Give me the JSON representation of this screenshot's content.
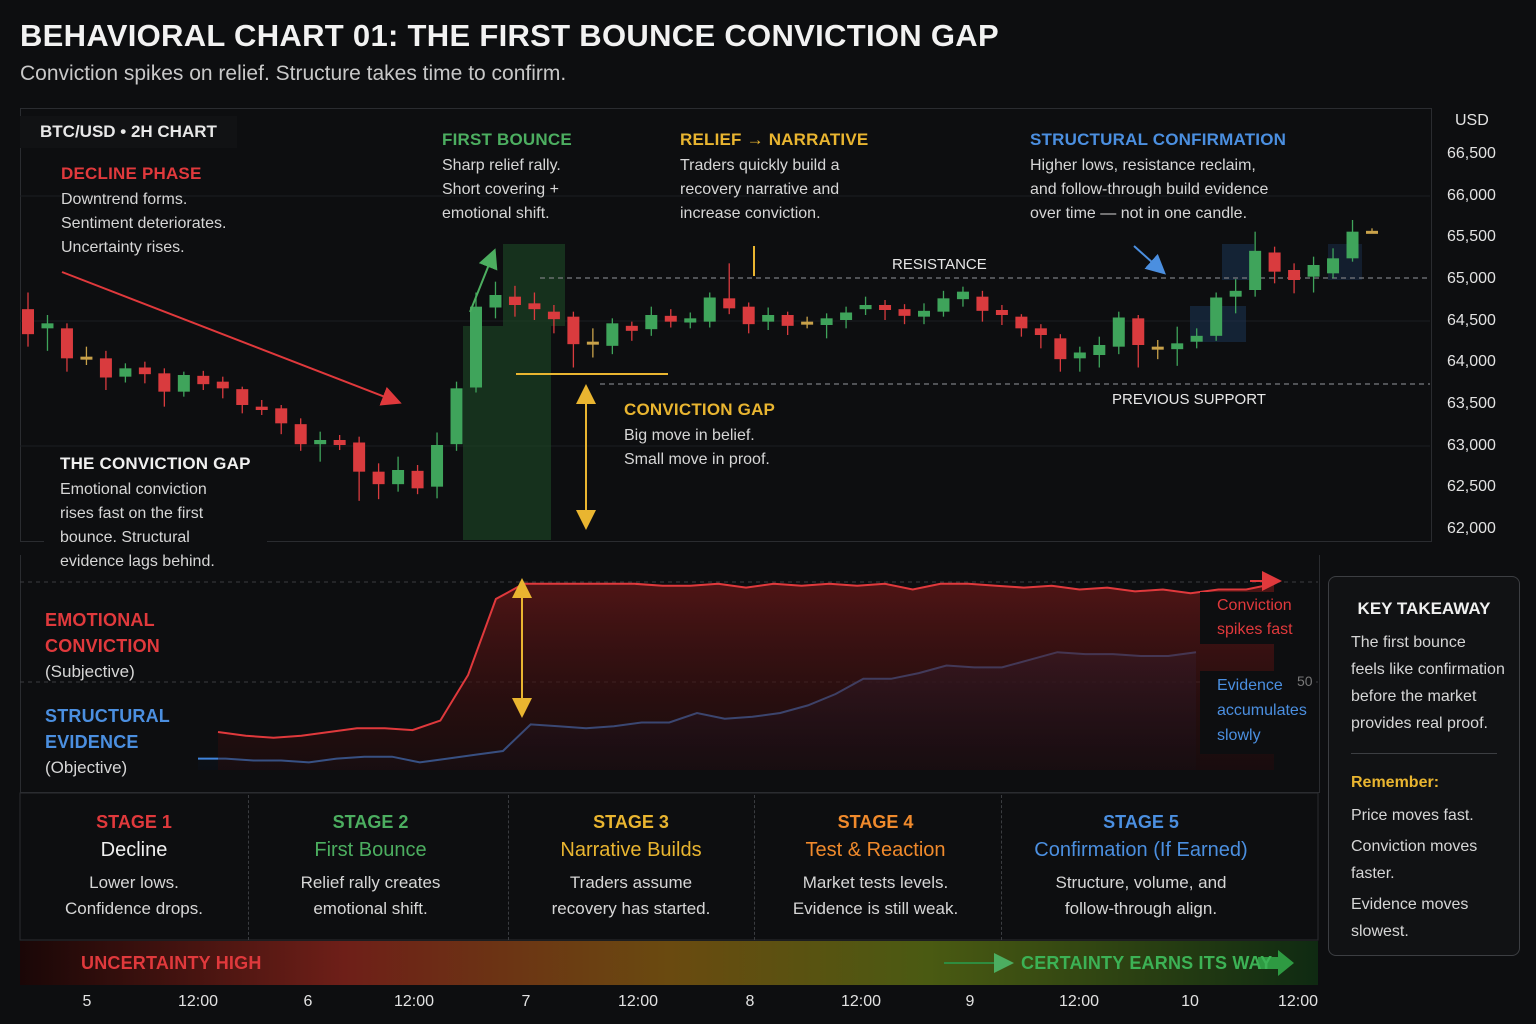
{
  "title": "BEHAVIORAL CHART 01: THE FIRST BOUNCE CONVICTION GAP",
  "subtitle": "Conviction spikes on relief. Structure takes time to confirm.",
  "pair_label": "BTC/USD • 2H CHART",
  "axis": {
    "unit": "USD",
    "y_ticks": [
      "66,500",
      "66,000",
      "65,500",
      "65,000",
      "64,500",
      "64,000",
      "63,500",
      "63,000",
      "62,500",
      "62,000"
    ],
    "x_ticks": [
      "5",
      "12:00",
      "6",
      "12:00",
      "7",
      "12:00",
      "8",
      "12:00",
      "9",
      "12:00",
      "10",
      "12:00"
    ]
  },
  "annotations": {
    "decline": {
      "heading": "DECLINE PHASE",
      "text": "Downtrend forms.\nSentiment deteriorates.\nUncertainty rises."
    },
    "first_bounce": {
      "heading": "FIRST BOUNCE",
      "text": "Sharp relief rally.\nShort covering +\nemotional shift."
    },
    "relief": {
      "heading": "RELIEF → NARRATIVE",
      "text": "Traders quickly build a\nrecovery narrative and\nincrease conviction."
    },
    "structural": {
      "heading": "STRUCTURAL CONFIRMATION",
      "text": "Higher lows, resistance reclaim,\nand follow-through build evidence\nover time — not in one candle."
    },
    "gap": {
      "heading": "CONVICTION GAP",
      "text": "Big move in belief.\nSmall move in proof."
    },
    "conviction_gap": {
      "heading": "THE CONVICTION GAP",
      "text": "Emotional conviction\nrises fast on the first\nbounce. Structural\nevidence lags behind."
    },
    "resistance": "RESISTANCE",
    "previous_support": "PREVIOUS SUPPORT"
  },
  "lower_panel": {
    "emotional_label_1": "EMOTIONAL",
    "emotional_label_2": "CONVICTION",
    "emotional_sub": "(Subjective)",
    "structural_label_1": "STRUCTURAL",
    "structural_label_2": "EVIDENCE",
    "structural_sub": "(Objective)",
    "conviction_note_1": "Conviction",
    "conviction_note_2": "spikes fast",
    "evidence_note_1": "Evidence",
    "evidence_note_2": "accumulates",
    "evidence_note_3": "slowly",
    "mid_tick": "50"
  },
  "stages": [
    {
      "num": "STAGE 1",
      "name": "Decline",
      "desc": "Lower lows.\nConfidence drops."
    },
    {
      "num": "STAGE 2",
      "name": "First Bounce",
      "desc": "Relief rally creates\nemotional shift."
    },
    {
      "num": "STAGE 3",
      "name": "Narrative Builds",
      "desc": "Traders assume\nrecovery has started."
    },
    {
      "num": "STAGE 4",
      "name": "Test & Reaction",
      "desc": "Market tests levels.\nEvidence is still weak."
    },
    {
      "num": "STAGE 5",
      "name": "Confirmation (If Earned)",
      "desc": "Structure, volume, and\nfollow-through align."
    }
  ],
  "gradient_bar": {
    "left": "UNCERTAINTY HIGH",
    "right": "CERTAINTY EARNS ITS WAY"
  },
  "takeaway": {
    "heading": "KEY TAKEAWAY",
    "text": "The first bounce\nfeels like confirmation\nbefore the market\nprovides real proof.",
    "remember_heading": "Remember:",
    "remember_1": "Price moves fast.",
    "remember_2": "Conviction moves\nfaster.",
    "remember_3": "Evidence moves\nslowest."
  },
  "colors": {
    "up": "#3fa45b",
    "down": "#d93b3e",
    "neutral": "#c9a24a",
    "conviction": "#e0393c",
    "evidence": "#3f84dc",
    "accent": "#e9b530"
  },
  "chart_data": [
    {
      "type": "candlestick",
      "title": "BTC/USD • 2H CHART",
      "ylabel": "USD",
      "ylim": [
        61900,
        66800
      ],
      "reference_lines": [
        {
          "name": "RESISTANCE",
          "value": 65000
        },
        {
          "name": "PREVIOUS SUPPORT",
          "value": 63730
        }
      ],
      "candles": [
        {
          "o": 64650,
          "c": 64350,
          "h": 64850,
          "l": 64200
        },
        {
          "o": 64420,
          "c": 64480,
          "h": 64580,
          "l": 64150
        },
        {
          "o": 64420,
          "c": 64060,
          "h": 64480,
          "l": 63900
        },
        {
          "o": 64080,
          "c": 64050,
          "h": 64200,
          "l": 63980
        },
        {
          "o": 64060,
          "c": 63830,
          "h": 64150,
          "l": 63680
        },
        {
          "o": 63840,
          "c": 63940,
          "h": 64000,
          "l": 63770
        },
        {
          "o": 63950,
          "c": 63870,
          "h": 64020,
          "l": 63760
        },
        {
          "o": 63880,
          "c": 63660,
          "h": 63940,
          "l": 63480
        },
        {
          "o": 63660,
          "c": 63860,
          "h": 63900,
          "l": 63600
        },
        {
          "o": 63850,
          "c": 63750,
          "h": 63910,
          "l": 63680
        },
        {
          "o": 63780,
          "c": 63700,
          "h": 63840,
          "l": 63580
        },
        {
          "o": 63690,
          "c": 63500,
          "h": 63720,
          "l": 63400
        },
        {
          "o": 63480,
          "c": 63440,
          "h": 63560,
          "l": 63380
        },
        {
          "o": 63460,
          "c": 63280,
          "h": 63500,
          "l": 63150
        },
        {
          "o": 63270,
          "c": 63030,
          "h": 63340,
          "l": 62950
        },
        {
          "o": 63030,
          "c": 63080,
          "h": 63180,
          "l": 62820
        },
        {
          "o": 63080,
          "c": 63020,
          "h": 63140,
          "l": 62960
        },
        {
          "o": 63050,
          "c": 62700,
          "h": 63120,
          "l": 62350
        },
        {
          "o": 62700,
          "c": 62550,
          "h": 62800,
          "l": 62370
        },
        {
          "o": 62550,
          "c": 62720,
          "h": 62880,
          "l": 62460
        },
        {
          "o": 62710,
          "c": 62500,
          "h": 62780,
          "l": 62430
        },
        {
          "o": 62520,
          "c": 63020,
          "h": 63170,
          "l": 62380
        },
        {
          "o": 63030,
          "c": 63700,
          "h": 63780,
          "l": 62950
        },
        {
          "o": 63710,
          "c": 64680,
          "h": 64850,
          "l": 63650
        },
        {
          "o": 64670,
          "c": 64820,
          "h": 64980,
          "l": 64540
        },
        {
          "o": 64800,
          "c": 64700,
          "h": 64930,
          "l": 64560
        },
        {
          "o": 64720,
          "c": 64650,
          "h": 64850,
          "l": 64520
        },
        {
          "o": 64620,
          "c": 64530,
          "h": 64700,
          "l": 64360
        },
        {
          "o": 64560,
          "c": 64230,
          "h": 64620,
          "l": 63950
        },
        {
          "o": 64240,
          "c": 64260,
          "h": 64420,
          "l": 64070
        },
        {
          "o": 64210,
          "c": 64480,
          "h": 64540,
          "l": 64110
        },
        {
          "o": 64450,
          "c": 64390,
          "h": 64500,
          "l": 64270
        },
        {
          "o": 64410,
          "c": 64580,
          "h": 64680,
          "l": 64330
        },
        {
          "o": 64570,
          "c": 64500,
          "h": 64650,
          "l": 64430
        },
        {
          "o": 64490,
          "c": 64540,
          "h": 64610,
          "l": 64420
        },
        {
          "o": 64500,
          "c": 64790,
          "h": 64850,
          "l": 64430
        },
        {
          "o": 64780,
          "c": 64660,
          "h": 65200,
          "l": 64590
        },
        {
          "o": 64680,
          "c": 64470,
          "h": 64730,
          "l": 64360
        },
        {
          "o": 64500,
          "c": 64580,
          "h": 64670,
          "l": 64400
        },
        {
          "o": 64580,
          "c": 64450,
          "h": 64620,
          "l": 64340
        },
        {
          "o": 64470,
          "c": 64500,
          "h": 64560,
          "l": 64420
        },
        {
          "o": 64460,
          "c": 64540,
          "h": 64600,
          "l": 64300
        },
        {
          "o": 64520,
          "c": 64610,
          "h": 64680,
          "l": 64420
        },
        {
          "o": 64650,
          "c": 64700,
          "h": 64800,
          "l": 64580
        },
        {
          "o": 64700,
          "c": 64640,
          "h": 64760,
          "l": 64520
        },
        {
          "o": 64650,
          "c": 64570,
          "h": 64710,
          "l": 64470
        },
        {
          "o": 64560,
          "c": 64630,
          "h": 64720,
          "l": 64470
        },
        {
          "o": 64620,
          "c": 64780,
          "h": 64870,
          "l": 64560
        },
        {
          "o": 64770,
          "c": 64860,
          "h": 64920,
          "l": 64680
        },
        {
          "o": 64800,
          "c": 64630,
          "h": 64870,
          "l": 64500
        },
        {
          "o": 64640,
          "c": 64580,
          "h": 64700,
          "l": 64460
        },
        {
          "o": 64560,
          "c": 64420,
          "h": 64590,
          "l": 64320
        },
        {
          "o": 64420,
          "c": 64340,
          "h": 64470,
          "l": 64180
        },
        {
          "o": 64300,
          "c": 64050,
          "h": 64350,
          "l": 63900
        },
        {
          "o": 64060,
          "c": 64130,
          "h": 64200,
          "l": 63900
        },
        {
          "o": 64100,
          "c": 64220,
          "h": 64320,
          "l": 63950
        },
        {
          "o": 64200,
          "c": 64550,
          "h": 64620,
          "l": 64110
        },
        {
          "o": 64540,
          "c": 64220,
          "h": 64580,
          "l": 63950
        },
        {
          "o": 64200,
          "c": 64190,
          "h": 64280,
          "l": 64050
        },
        {
          "o": 64170,
          "c": 64240,
          "h": 64440,
          "l": 63970
        },
        {
          "o": 64260,
          "c": 64330,
          "h": 64420,
          "l": 64180
        },
        {
          "o": 64330,
          "c": 64790,
          "h": 64850,
          "l": 64270
        },
        {
          "o": 64800,
          "c": 64870,
          "h": 65010,
          "l": 64600
        },
        {
          "o": 64880,
          "c": 65350,
          "h": 65580,
          "l": 64800
        },
        {
          "o": 65330,
          "c": 65100,
          "h": 65400,
          "l": 64960
        },
        {
          "o": 65120,
          "c": 65000,
          "h": 65200,
          "l": 64840
        },
        {
          "o": 65040,
          "c": 65180,
          "h": 65280,
          "l": 64850
        },
        {
          "o": 65080,
          "c": 65260,
          "h": 65380,
          "l": 65020
        },
        {
          "o": 65260,
          "c": 65580,
          "h": 65720,
          "l": 65220
        },
        {
          "o": 65580,
          "c": 65590,
          "h": 65620,
          "l": 65560
        }
      ]
    },
    {
      "type": "line",
      "series": [
        {
          "name": "EMOTIONAL CONVICTION",
          "values": [
            20,
            18,
            17,
            18,
            20,
            22,
            22,
            21,
            26,
            50,
            90,
            98,
            98,
            98,
            98,
            98,
            97,
            97,
            98,
            96,
            98,
            97,
            98,
            97,
            98,
            95,
            98,
            98,
            97,
            96,
            97,
            95,
            96,
            94,
            95,
            93,
            95,
            95,
            98
          ]
        },
        {
          "name": "STRUCTURAL EVIDENCE",
          "values": [
            6,
            6,
            5,
            5,
            4,
            6,
            7,
            7,
            4,
            6,
            8,
            10,
            24,
            23,
            22,
            23,
            25,
            25,
            30,
            27,
            28,
            30,
            34,
            40,
            48,
            48,
            51,
            55,
            54,
            54,
            58,
            62,
            61,
            61,
            60,
            60,
            62
          ]
        }
      ]
    }
  ]
}
